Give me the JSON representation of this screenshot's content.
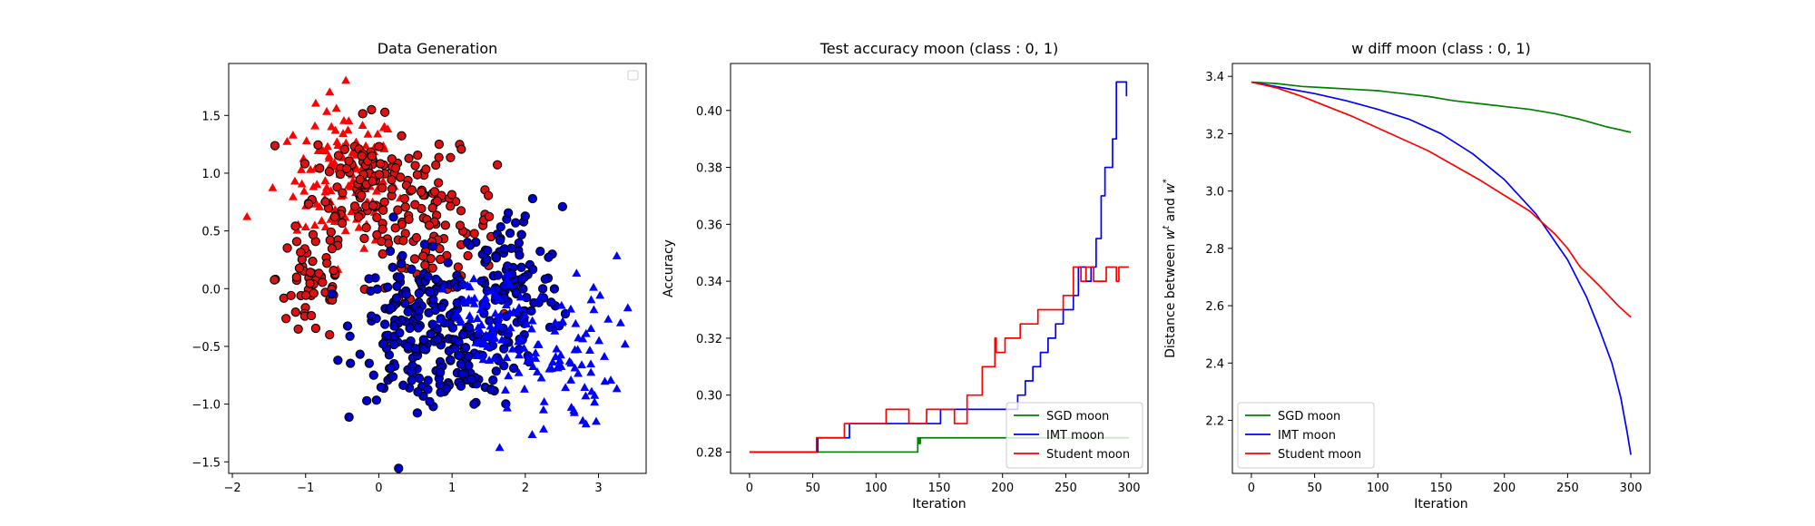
{
  "chart_data": [
    {
      "type": "scatter",
      "title": "Data Generation",
      "xlabel": "",
      "ylabel": "",
      "xlim": [
        -2.05,
        3.65
      ],
      "ylim": [
        -1.6,
        1.95
      ],
      "xticks": [
        -2,
        -1,
        0,
        1,
        2,
        3
      ],
      "yticks": [
        -1.5,
        -1.0,
        -0.5,
        0.0,
        0.5,
        1.0,
        1.5
      ],
      "legend": "top-right (empty)",
      "grid": false,
      "series": [
        {
          "color": "#ff0000",
          "marker": "triangle",
          "edge": "none",
          "clusters": [
            {
              "cx": -0.45,
              "cy": 0.95,
              "sx": 0.35,
              "sy": 0.3,
              "n": 130
            }
          ],
          "extra_points": [
            [
              -1.8,
              0.62
            ],
            [
              -0.45,
              1.8
            ],
            [
              -1.45,
              0.87
            ],
            [
              -1.1,
              0.55
            ]
          ]
        },
        {
          "color": "#dd1111",
          "marker": "circle",
          "edge": "#000000",
          "clusters": [
            {
              "cx": -0.2,
              "cy": 0.95,
              "sx": 0.35,
              "sy": 0.25,
              "n": 90
            },
            {
              "cx": 0.7,
              "cy": 0.55,
              "sx": 0.45,
              "sy": 0.3,
              "n": 110
            },
            {
              "cx": -0.9,
              "cy": 0.1,
              "sx": 0.25,
              "sy": 0.3,
              "n": 60
            }
          ],
          "extra_points": [
            [
              -0.1,
              1.55
            ],
            [
              1.5,
              0.2
            ],
            [
              -1.1,
              -0.35
            ]
          ]
        },
        {
          "color": "#0000cc",
          "marker": "circle",
          "edge": "#000000",
          "clusters": [
            {
              "cx": 0.5,
              "cy": -0.35,
              "sx": 0.4,
              "sy": 0.3,
              "n": 180
            },
            {
              "cx": 1.8,
              "cy": 0.0,
              "sx": 0.35,
              "sy": 0.35,
              "n": 120
            },
            {
              "cx": 1.2,
              "cy": -0.6,
              "sx": 0.35,
              "sy": 0.2,
              "n": 70
            }
          ],
          "extra_points": [
            [
              2.1,
              0.78
            ],
            [
              1.3,
              -1.0
            ],
            [
              0.2,
              0.62
            ]
          ]
        },
        {
          "color": "#0000ff",
          "marker": "triangle",
          "edge": "none",
          "clusters": [
            {
              "cx": 2.3,
              "cy": -0.6,
              "sx": 0.45,
              "sy": 0.3,
              "n": 90
            },
            {
              "cx": 1.5,
              "cy": -0.3,
              "sx": 0.3,
              "sy": 0.2,
              "n": 50
            }
          ],
          "extra_points": [
            [
              3.25,
              0.28
            ],
            [
              3.4,
              -0.17
            ],
            [
              3.25,
              -0.87
            ],
            [
              1.65,
              -1.38
            ],
            [
              2.25,
              -1.22
            ],
            [
              2.7,
              0.13
            ],
            [
              2.9,
              -0.1
            ]
          ]
        }
      ]
    },
    {
      "type": "line",
      "title": "Test accuracy moon (class : 0, 1)",
      "xlabel": "Iteration",
      "ylabel": "Accuracy",
      "xlim": [
        -15,
        315
      ],
      "ylim": [
        0.2725,
        0.4165
      ],
      "xticks": [
        0,
        50,
        100,
        150,
        200,
        250,
        300
      ],
      "yticks": [
        0.28,
        0.3,
        0.32,
        0.34,
        0.36,
        0.38,
        0.4
      ],
      "yticks_labels": [
        "0.28",
        "0.30",
        "0.32",
        "0.34",
        "0.36",
        "0.38",
        "0.40"
      ],
      "legend": "lower-right",
      "grid": false,
      "series": [
        {
          "name": "SGD moon",
          "color": "#008000",
          "steps": [
            [
              0,
              0.28
            ],
            [
              132,
              0.28
            ],
            [
              133,
              0.285
            ],
            [
              134,
              0.283
            ],
            [
              135,
              0.285
            ],
            [
              300,
              0.285
            ]
          ]
        },
        {
          "name": "IMT moon",
          "color": "#0000ff",
          "steps": [
            [
              0,
              0.28
            ],
            [
              53,
              0.28
            ],
            [
              54,
              0.285
            ],
            [
              78,
              0.285
            ],
            [
              79,
              0.29
            ],
            [
              150,
              0.29
            ],
            [
              151,
              0.295
            ],
            [
              210,
              0.295
            ],
            [
              212,
              0.3
            ],
            [
              218,
              0.305
            ],
            [
              224,
              0.31
            ],
            [
              230,
              0.315
            ],
            [
              236,
              0.32
            ],
            [
              242,
              0.325
            ],
            [
              248,
              0.33
            ],
            [
              256,
              0.335
            ],
            [
              260,
              0.345
            ],
            [
              266,
              0.34
            ],
            [
              270,
              0.345
            ],
            [
              274,
              0.355
            ],
            [
              278,
              0.37
            ],
            [
              281,
              0.38
            ],
            [
              285,
              0.38
            ],
            [
              287,
              0.39
            ],
            [
              290,
              0.41
            ],
            [
              296,
              0.41
            ],
            [
              298,
              0.405
            ]
          ]
        },
        {
          "name": "Student moon",
          "color": "#ff0000",
          "steps": [
            [
              0,
              0.28
            ],
            [
              52,
              0.28
            ],
            [
              53,
              0.285
            ],
            [
              74,
              0.285
            ],
            [
              75,
              0.29
            ],
            [
              105,
              0.29
            ],
            [
              108,
              0.295
            ],
            [
              125,
              0.295
            ],
            [
              126,
              0.29
            ],
            [
              138,
              0.29
            ],
            [
              140,
              0.295
            ],
            [
              160,
              0.295
            ],
            [
              162,
              0.29
            ],
            [
              170,
              0.29
            ],
            [
              172,
              0.3
            ],
            [
              182,
              0.3
            ],
            [
              184,
              0.31
            ],
            [
              192,
              0.31
            ],
            [
              194,
              0.32
            ],
            [
              195,
              0.315
            ],
            [
              200,
              0.315
            ],
            [
              202,
              0.32
            ],
            [
              212,
              0.32
            ],
            [
              214,
              0.325
            ],
            [
              226,
              0.325
            ],
            [
              228,
              0.33
            ],
            [
              246,
              0.33
            ],
            [
              248,
              0.335
            ],
            [
              254,
              0.335
            ],
            [
              256,
              0.345
            ],
            [
              260,
              0.345
            ],
            [
              262,
              0.34
            ],
            [
              266,
              0.345
            ],
            [
              270,
              0.345
            ],
            [
              272,
              0.34
            ],
            [
              280,
              0.34
            ],
            [
              282,
              0.345
            ],
            [
              288,
              0.345
            ],
            [
              290,
              0.34
            ],
            [
              292,
              0.345
            ],
            [
              300,
              0.345
            ]
          ]
        }
      ]
    },
    {
      "type": "line",
      "title": "w diff moon (class : 0, 1)",
      "xlabel": "Iteration",
      "ylabel": "Distance between w^t and w^*",
      "ylabel_parts": [
        "Distance between ",
        "w",
        "t",
        " and ",
        "w",
        "*"
      ],
      "xlim": [
        -15,
        315
      ],
      "ylim": [
        2.015,
        3.445
      ],
      "xticks": [
        0,
        50,
        100,
        150,
        200,
        250,
        300
      ],
      "yticks": [
        2.2,
        2.4,
        2.6,
        2.8,
        3.0,
        3.2,
        3.4
      ],
      "yticks_labels": [
        "2.2",
        "2.4",
        "2.6",
        "2.8",
        "3.0",
        "3.2",
        "3.4"
      ],
      "legend": "lower-left",
      "grid": false,
      "series": [
        {
          "name": "SGD moon",
          "color": "#008000",
          "points": [
            [
              0,
              3.38
            ],
            [
              20,
              3.375
            ],
            [
              40,
              3.365
            ],
            [
              60,
              3.36
            ],
            [
              80,
              3.355
            ],
            [
              100,
              3.35
            ],
            [
              120,
              3.34
            ],
            [
              140,
              3.33
            ],
            [
              160,
              3.315
            ],
            [
              180,
              3.305
            ],
            [
              200,
              3.295
            ],
            [
              220,
              3.285
            ],
            [
              240,
              3.27
            ],
            [
              260,
              3.25
            ],
            [
              280,
              3.225
            ],
            [
              300,
              3.205
            ]
          ]
        },
        {
          "name": "IMT moon",
          "color": "#0000ff",
          "points": [
            [
              0,
              3.38
            ],
            [
              25,
              3.36
            ],
            [
              50,
              3.34
            ],
            [
              75,
              3.315
            ],
            [
              100,
              3.285
            ],
            [
              125,
              3.25
            ],
            [
              150,
              3.2
            ],
            [
              175,
              3.13
            ],
            [
              200,
              3.04
            ],
            [
              225,
              2.92
            ],
            [
              250,
              2.76
            ],
            [
              265,
              2.63
            ],
            [
              275,
              2.52
            ],
            [
              285,
              2.4
            ],
            [
              292,
              2.28
            ],
            [
              297,
              2.16
            ],
            [
              300,
              2.08
            ]
          ]
        },
        {
          "name": "Student moon",
          "color": "#ff0000",
          "points": [
            [
              0,
              3.38
            ],
            [
              20,
              3.36
            ],
            [
              40,
              3.33
            ],
            [
              60,
              3.295
            ],
            [
              80,
              3.26
            ],
            [
              100,
              3.22
            ],
            [
              120,
              3.18
            ],
            [
              140,
              3.14
            ],
            [
              160,
              3.09
            ],
            [
              180,
              3.04
            ],
            [
              200,
              2.985
            ],
            [
              220,
              2.93
            ],
            [
              240,
              2.85
            ],
            [
              250,
              2.8
            ],
            [
              260,
              2.735
            ],
            [
              275,
              2.67
            ],
            [
              290,
              2.6
            ],
            [
              300,
              2.56
            ]
          ]
        }
      ]
    }
  ]
}
